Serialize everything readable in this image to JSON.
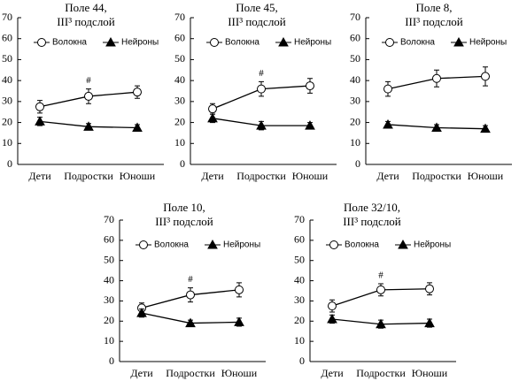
{
  "chart_data": [
    {
      "type": "line",
      "title": [
        "Поле 44,",
        "III³ подслой"
      ],
      "categories": [
        "Дети",
        "Подростки",
        "Юноши"
      ],
      "ylim": [
        0,
        70
      ],
      "yticks": [
        0,
        10,
        20,
        30,
        40,
        50,
        60,
        70
      ],
      "legend": "top",
      "series": [
        {
          "name": "Волокна",
          "color": "#000000",
          "marker": "circle",
          "filled": false,
          "values": [
            27.5,
            32.5,
            34.5
          ],
          "errors": [
            3,
            3.5,
            3
          ]
        },
        {
          "name": "Нейроны",
          "color": "#000000",
          "marker": "triangle",
          "filled": true,
          "values": [
            20.5,
            18,
            17.5
          ],
          "errors": [
            2,
            1.5,
            1.5
          ]
        }
      ],
      "annotations": [
        {
          "text": "#",
          "x": "Подростки"
        }
      ]
    },
    {
      "type": "line",
      "title": [
        "Поле 45,",
        "III³ подслой"
      ],
      "categories": [
        "Дети",
        "Подростки",
        "Юноши"
      ],
      "ylim": [
        0,
        70
      ],
      "yticks": [
        0,
        10,
        20,
        30,
        40,
        50,
        60,
        70
      ],
      "legend": "top",
      "series": [
        {
          "name": "Волокна",
          "color": "#000000",
          "marker": "circle",
          "filled": false,
          "values": [
            26.5,
            36,
            37.5
          ],
          "errors": [
            2.5,
            3.5,
            3.5
          ]
        },
        {
          "name": "Нейроны",
          "color": "#000000",
          "marker": "triangle",
          "filled": true,
          "values": [
            22,
            18.5,
            18.5
          ],
          "errors": [
            2,
            2,
            1.5
          ]
        }
      ],
      "annotations": [
        {
          "text": "#",
          "x": "Подростки"
        }
      ]
    },
    {
      "type": "line",
      "title": [
        "Поле 8,",
        "III³ подслой"
      ],
      "categories": [
        "Дети",
        "Подростки",
        "Юноши"
      ],
      "ylim": [
        0,
        70
      ],
      "yticks": [
        0,
        10,
        20,
        30,
        40,
        50,
        60,
        70
      ],
      "legend": "top",
      "series": [
        {
          "name": "Волокна",
          "color": "#000000",
          "marker": "circle",
          "filled": false,
          "values": [
            36,
            41,
            42
          ],
          "errors": [
            3.5,
            4,
            4.5
          ]
        },
        {
          "name": "Нейроны",
          "color": "#000000",
          "marker": "triangle",
          "filled": true,
          "values": [
            19,
            17.5,
            17
          ],
          "errors": [
            1.5,
            1.5,
            1.5
          ]
        }
      ]
    },
    {
      "type": "line",
      "title": [
        "Поле 10,",
        "III³ подслой"
      ],
      "categories": [
        "Дети",
        "Подростки",
        "Юноши"
      ],
      "ylim": [
        0,
        70
      ],
      "yticks": [
        0,
        10,
        20,
        30,
        40,
        50,
        60,
        70
      ],
      "legend": "top",
      "series": [
        {
          "name": "Волокна",
          "color": "#000000",
          "marker": "circle",
          "filled": false,
          "values": [
            26.5,
            33,
            35.5
          ],
          "errors": [
            2.5,
            3.5,
            3.5
          ]
        },
        {
          "name": "Нейроны",
          "color": "#000000",
          "marker": "triangle",
          "filled": true,
          "values": [
            24,
            19,
            19.5
          ],
          "errors": [
            2,
            1.5,
            2
          ]
        }
      ],
      "annotations": [
        {
          "text": "#",
          "x": "Подростки"
        }
      ]
    },
    {
      "type": "line",
      "title": [
        "Поле 32/10,",
        "III³ подслой"
      ],
      "categories": [
        "Дети",
        "Подростки",
        "Юноши"
      ],
      "ylim": [
        0,
        70
      ],
      "yticks": [
        0,
        10,
        20,
        30,
        40,
        50,
        60,
        70
      ],
      "legend": "top",
      "series": [
        {
          "name": "Волокна",
          "color": "#000000",
          "marker": "circle",
          "filled": false,
          "values": [
            27.5,
            35.5,
            36
          ],
          "errors": [
            3,
            3,
            3
          ]
        },
        {
          "name": "Нейроны",
          "color": "#000000",
          "marker": "triangle",
          "filled": true,
          "values": [
            21,
            18.5,
            19
          ],
          "errors": [
            2,
            2,
            2
          ]
        }
      ],
      "annotations": [
        {
          "text": "#",
          "x": "Подростки"
        }
      ]
    }
  ]
}
